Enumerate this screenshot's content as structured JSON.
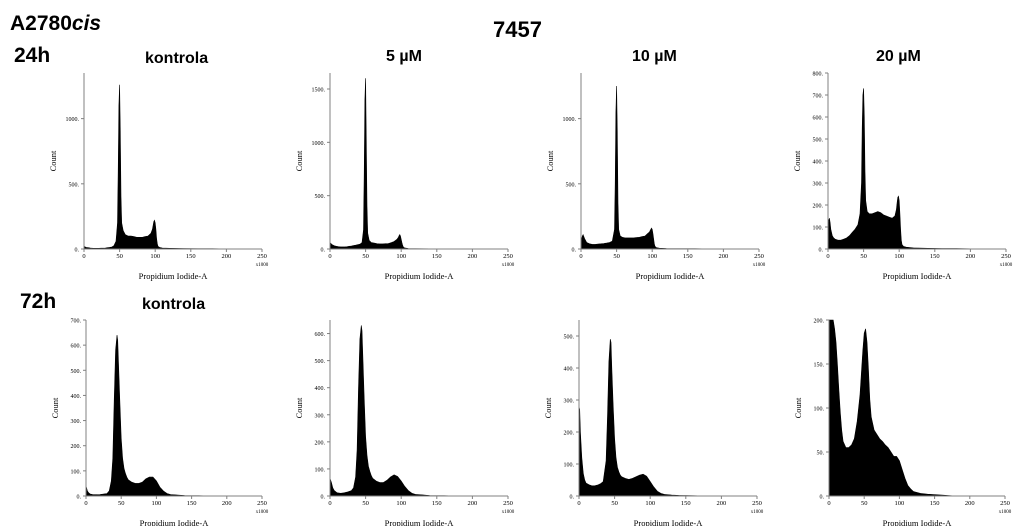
{
  "header": {
    "cell_line": "A2780",
    "cell_line_suffix": "cis",
    "compound": "7457",
    "row_labels": [
      "24h",
      "72h"
    ],
    "row_conditions": [
      "kontrola",
      "kontrola"
    ],
    "column_conditions": [
      "5 µM",
      "10 µM",
      "20 µM"
    ]
  },
  "chart_data": [
    {
      "type": "area",
      "row": "24h",
      "condition": "kontrola",
      "xlabel": "Propidium Iodide-A",
      "ylabel": "Count",
      "x_multiplier": "x1000",
      "ylim": [
        0,
        1350
      ],
      "yticks": [
        0,
        500,
        1000
      ],
      "ytick_labels": [
        "0",
        "500",
        "1000"
      ],
      "xticks": [
        0,
        50,
        100,
        150,
        200,
        250
      ],
      "x": [
        0,
        3,
        6,
        9,
        12,
        15,
        18,
        21,
        24,
        27,
        30,
        33,
        36,
        39,
        42,
        45,
        47,
        48,
        49,
        50,
        51,
        52,
        53,
        55,
        58,
        62,
        66,
        70,
        74,
        78,
        82,
        86,
        90,
        94,
        96,
        97,
        98,
        99,
        100,
        101,
        102,
        103,
        104,
        106,
        110,
        120,
        140,
        160,
        180,
        200,
        220,
        250
      ],
      "y": [
        20,
        12,
        10,
        8,
        6,
        5,
        5,
        5,
        6,
        6,
        8,
        10,
        12,
        15,
        25,
        60,
        200,
        600,
        1100,
        1260,
        900,
        400,
        200,
        140,
        110,
        100,
        100,
        95,
        90,
        90,
        90,
        95,
        100,
        120,
        150,
        180,
        210,
        220,
        200,
        150,
        80,
        40,
        20,
        12,
        8,
        5,
        3,
        2,
        2,
        1,
        1,
        0
      ]
    },
    {
      "type": "area",
      "row": "24h",
      "condition": "5 µM",
      "xlabel": "Propidium Iodide-A",
      "ylabel": "Count",
      "x_multiplier": "x1000",
      "ylim": [
        0,
        1650
      ],
      "yticks": [
        0,
        500,
        1000,
        1500
      ],
      "ytick_labels": [
        "0",
        "500",
        "1000",
        "1500"
      ],
      "xticks": [
        0,
        50,
        100,
        150,
        200,
        250
      ],
      "x": [
        0,
        3,
        6,
        9,
        12,
        15,
        18,
        21,
        24,
        27,
        30,
        33,
        36,
        39,
        42,
        45,
        47,
        48,
        49,
        50,
        51,
        52,
        53,
        55,
        58,
        62,
        66,
        70,
        74,
        78,
        82,
        86,
        90,
        94,
        96,
        97,
        98,
        99,
        100,
        101,
        102,
        103,
        104,
        106,
        110,
        120,
        140,
        160,
        180,
        200,
        220,
        250
      ],
      "y": [
        60,
        40,
        30,
        25,
        22,
        20,
        20,
        20,
        22,
        25,
        28,
        32,
        36,
        40,
        45,
        60,
        180,
        700,
        1400,
        1600,
        1000,
        400,
        150,
        80,
        60,
        55,
        50,
        48,
        48,
        50,
        52,
        60,
        70,
        90,
        110,
        125,
        135,
        120,
        90,
        60,
        35,
        20,
        12,
        8,
        5,
        3,
        2,
        1,
        1,
        1,
        0,
        0
      ]
    },
    {
      "type": "area",
      "row": "24h",
      "condition": "10 µM",
      "xlabel": "Propidium Iodide-A",
      "ylabel": "Count",
      "x_multiplier": "x1000",
      "ylim": [
        0,
        1350
      ],
      "yticks": [
        0,
        500,
        1000
      ],
      "ytick_labels": [
        "0",
        "500",
        "1000"
      ],
      "xticks": [
        0,
        50,
        100,
        150,
        200,
        250
      ],
      "x": [
        0,
        2,
        3,
        5,
        8,
        12,
        16,
        20,
        24,
        28,
        32,
        36,
        40,
        44,
        47,
        48,
        49,
        50,
        51,
        52,
        53,
        55,
        58,
        62,
        66,
        70,
        74,
        78,
        82,
        86,
        90,
        94,
        96,
        97,
        98,
        99,
        100,
        101,
        102,
        103,
        104,
        106,
        110,
        120,
        140,
        160,
        180,
        200,
        220,
        250
      ],
      "y": [
        60,
        100,
        110,
        80,
        50,
        40,
        35,
        35,
        38,
        40,
        42,
        45,
        50,
        60,
        150,
        500,
        1050,
        1250,
        900,
        350,
        150,
        100,
        90,
        85,
        85,
        85,
        85,
        88,
        90,
        95,
        100,
        120,
        130,
        140,
        150,
        160,
        150,
        120,
        80,
        40,
        20,
        10,
        6,
        4,
        2,
        2,
        1,
        1,
        0,
        0
      ]
    },
    {
      "type": "area",
      "row": "24h",
      "condition": "20 µM",
      "xlabel": "Propidium Iodide-A",
      "ylabel": "Count",
      "x_multiplier": "x1000",
      "ylim": [
        0,
        800
      ],
      "yticks": [
        0,
        100,
        200,
        300,
        400,
        500,
        600,
        700,
        800
      ],
      "ytick_labels": [
        "0",
        "100",
        "200",
        "300",
        "400",
        "500",
        "600",
        "700",
        "800"
      ],
      "xticks": [
        0,
        50,
        100,
        150,
        200,
        250
      ],
      "x": [
        0,
        1,
        2,
        3,
        4,
        6,
        8,
        10,
        14,
        18,
        22,
        26,
        30,
        34,
        38,
        42,
        45,
        47,
        48,
        49,
        50,
        51,
        52,
        53,
        55,
        58,
        62,
        66,
        70,
        74,
        78,
        82,
        86,
        90,
        94,
        96,
        97,
        98,
        99,
        100,
        101,
        102,
        103,
        104,
        106,
        110,
        120,
        140,
        160,
        180,
        200,
        220,
        250
      ],
      "y": [
        100,
        130,
        140,
        120,
        90,
        60,
        50,
        45,
        40,
        40,
        45,
        50,
        60,
        75,
        90,
        110,
        160,
        300,
        550,
        700,
        730,
        600,
        350,
        220,
        170,
        160,
        160,
        165,
        170,
        165,
        155,
        150,
        145,
        140,
        150,
        180,
        210,
        235,
        240,
        220,
        160,
        90,
        40,
        20,
        12,
        8,
        5,
        3,
        2,
        2,
        1,
        1,
        0
      ]
    },
    {
      "type": "area",
      "row": "72h",
      "condition": "kontrola",
      "xlabel": "Propidium Iodide-A",
      "ylabel": "Count",
      "x_multiplier": "x1000",
      "ylim": [
        0,
        700
      ],
      "yticks": [
        0,
        100,
        200,
        300,
        400,
        500,
        600,
        700
      ],
      "ytick_labels": [
        "0",
        "100",
        "200",
        "300",
        "400",
        "500",
        "600",
        "700"
      ],
      "xticks": [
        0,
        50,
        100,
        150,
        200,
        250
      ],
      "x": [
        0,
        2,
        4,
        6,
        10,
        15,
        20,
        25,
        30,
        33,
        36,
        38,
        40,
        42,
        44,
        45,
        46,
        48,
        50,
        52,
        54,
        56,
        58,
        60,
        65,
        70,
        75,
        80,
        85,
        90,
        95,
        100,
        105,
        110,
        115,
        120,
        130,
        140,
        160,
        180,
        200,
        250
      ],
      "y": [
        40,
        20,
        12,
        8,
        5,
        5,
        6,
        8,
        10,
        20,
        60,
        150,
        380,
        580,
        640,
        620,
        540,
        380,
        230,
        150,
        110,
        90,
        75,
        65,
        55,
        50,
        50,
        55,
        68,
        75,
        75,
        60,
        35,
        20,
        10,
        6,
        4,
        2,
        1,
        0,
        0,
        0
      ]
    },
    {
      "type": "area",
      "row": "72h",
      "condition": "5 µM",
      "xlabel": "Propidium Iodide-A",
      "ylabel": "Count",
      "x_multiplier": "x1000",
      "ylim": [
        0,
        650
      ],
      "yticks": [
        0,
        100,
        200,
        300,
        400,
        500,
        600
      ],
      "ytick_labels": [
        "0",
        "100",
        "200",
        "300",
        "400",
        "500",
        "600"
      ],
      "xticks": [
        0,
        50,
        100,
        150,
        200,
        250
      ],
      "x": [
        0,
        2,
        4,
        6,
        10,
        15,
        20,
        25,
        30,
        33,
        36,
        38,
        40,
        42,
        44,
        45,
        46,
        48,
        50,
        52,
        54,
        56,
        58,
        60,
        65,
        70,
        75,
        80,
        85,
        90,
        95,
        100,
        105,
        110,
        115,
        120,
        130,
        140,
        160,
        180,
        200,
        250
      ],
      "y": [
        65,
        50,
        30,
        20,
        12,
        10,
        12,
        15,
        20,
        30,
        70,
        170,
        400,
        580,
        630,
        610,
        520,
        360,
        220,
        150,
        110,
        90,
        75,
        65,
        55,
        50,
        50,
        58,
        70,
        78,
        72,
        55,
        35,
        20,
        10,
        6,
        4,
        2,
        1,
        0,
        0,
        0
      ]
    },
    {
      "type": "area",
      "row": "72h",
      "condition": "10 µM",
      "xlabel": "Propidium Iodide-A",
      "ylabel": "Count",
      "x_multiplier": "x1000",
      "ylim": [
        0,
        550
      ],
      "yticks": [
        0,
        100,
        200,
        300,
        400,
        500
      ],
      "ytick_labels": [
        "0",
        "100",
        "200",
        "300",
        "400",
        "500"
      ],
      "xticks": [
        0,
        50,
        100,
        150,
        200,
        250
      ],
      "x": [
        0,
        1,
        2,
        4,
        6,
        8,
        10,
        14,
        18,
        22,
        26,
        30,
        34,
        38,
        40,
        42,
        44,
        45,
        46,
        48,
        50,
        52,
        54,
        56,
        58,
        60,
        65,
        70,
        75,
        80,
        85,
        90,
        95,
        100,
        105,
        110,
        115,
        120,
        130,
        140,
        160,
        180,
        200,
        250
      ],
      "y": [
        280,
        270,
        200,
        120,
        70,
        50,
        40,
        35,
        32,
        32,
        34,
        38,
        45,
        110,
        250,
        420,
        490,
        480,
        400,
        280,
        180,
        120,
        90,
        75,
        65,
        60,
        55,
        52,
        55,
        60,
        65,
        68,
        62,
        45,
        28,
        15,
        8,
        5,
        3,
        2,
        1,
        0,
        0,
        0
      ]
    },
    {
      "type": "area",
      "row": "72h",
      "condition": "20 µM",
      "xlabel": "Propidium Iodide-A",
      "ylabel": "Count",
      "x_multiplier": "x1000",
      "ylim": [
        0,
        200
      ],
      "yticks": [
        0,
        50,
        100,
        150,
        200
      ],
      "ytick_labels": [
        "0",
        "50",
        "100",
        "150",
        "200"
      ],
      "xticks": [
        0,
        50,
        100,
        150,
        200,
        250
      ],
      "x": [
        0,
        2,
        4,
        6,
        8,
        10,
        12,
        14,
        16,
        18,
        20,
        24,
        28,
        32,
        36,
        40,
        44,
        46,
        48,
        50,
        52,
        54,
        56,
        58,
        60,
        64,
        68,
        72,
        76,
        80,
        84,
        88,
        92,
        96,
        100,
        104,
        108,
        112,
        116,
        120,
        130,
        140,
        160,
        180,
        200,
        250
      ],
      "y": [
        200,
        200,
        200,
        200,
        190,
        175,
        150,
        120,
        95,
        75,
        62,
        55,
        55,
        58,
        65,
        85,
        115,
        140,
        165,
        185,
        190,
        175,
        145,
        110,
        90,
        75,
        70,
        65,
        62,
        58,
        55,
        50,
        45,
        45,
        40,
        30,
        20,
        12,
        8,
        5,
        3,
        2,
        1,
        0,
        0,
        0
      ]
    }
  ]
}
